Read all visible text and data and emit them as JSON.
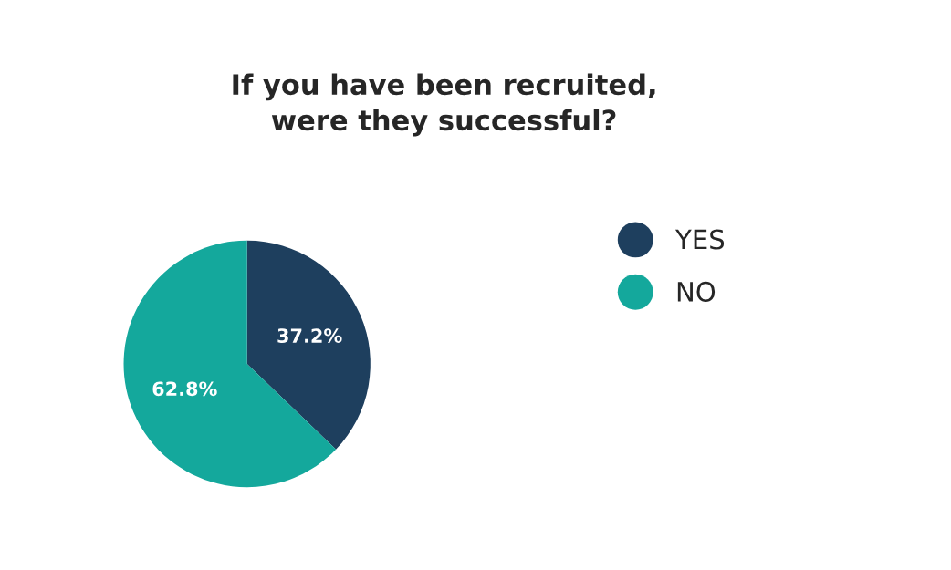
{
  "chart_data": {
    "type": "pie",
    "title": "If you have been recruited,\nwere they successful?",
    "categories": [
      "YES",
      "NO"
    ],
    "values": [
      37.2,
      62.8
    ],
    "value_labels": [
      "37.2%",
      "62.8%"
    ],
    "colors": [
      "#1e3f5e",
      "#14a89c"
    ],
    "legend": "right"
  }
}
